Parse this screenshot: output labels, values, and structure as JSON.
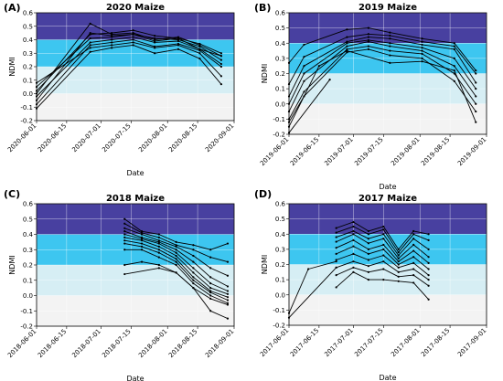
{
  "chart_data": [
    {
      "type": "line",
      "panel_label": "(A)",
      "title": "2020 Maize",
      "xlabel": "Date",
      "ylabel": "NDMI",
      "ylim": [
        -0.2,
        0.6
      ],
      "yticks": [
        "-0.2",
        "-0.1",
        "0.0",
        "0.1",
        "0.2",
        "0.3",
        "0.4",
        "0.5",
        "0.6"
      ],
      "xlim": [
        "2020-06-01",
        "2020-09-01"
      ],
      "xticks": [
        "2020-06-01",
        "2020-06-15",
        "2020-07-01",
        "2020-07-15",
        "2020-08-01",
        "2020-08-15",
        "2020-09-01"
      ],
      "grid": true,
      "bands": [
        {
          "from": 0.4,
          "to": 0.6,
          "color": "#4840a0"
        },
        {
          "from": 0.2,
          "to": 0.4,
          "color": "#3dc6f0"
        },
        {
          "from": 0.0,
          "to": 0.2,
          "color": "#d6eef4"
        },
        {
          "from": -0.2,
          "to": 0.0,
          "color": "#f3f3f3"
        }
      ],
      "series": [
        {
          "x": [
            "2020-06-01",
            "2020-06-26",
            "2020-07-06",
            "2020-07-16",
            "2020-07-26",
            "2020-08-06",
            "2020-08-16",
            "2020-08-26"
          ],
          "values": [
            0.02,
            0.44,
            0.45,
            0.47,
            0.43,
            0.41,
            0.37,
            0.3
          ]
        },
        {
          "x": [
            "2020-06-01",
            "2020-06-26",
            "2020-07-06",
            "2020-07-16",
            "2020-07-26",
            "2020-08-06",
            "2020-08-16",
            "2020-08-26"
          ],
          "values": [
            0.0,
            0.52,
            0.44,
            0.45,
            0.4,
            0.42,
            0.36,
            0.28
          ]
        },
        {
          "x": [
            "2020-06-01",
            "2020-06-26",
            "2020-07-06",
            "2020-07-16",
            "2020-07-26",
            "2020-08-06",
            "2020-08-16",
            "2020-08-26"
          ],
          "values": [
            -0.05,
            0.45,
            0.43,
            0.44,
            0.41,
            0.4,
            0.35,
            0.25
          ]
        },
        {
          "x": [
            "2020-06-01",
            "2020-06-26",
            "2020-07-06",
            "2020-07-16",
            "2020-07-26",
            "2020-08-06",
            "2020-08-16",
            "2020-08-26"
          ],
          "values": [
            0.05,
            0.41,
            0.42,
            0.44,
            0.39,
            0.41,
            0.33,
            0.28
          ]
        },
        {
          "x": [
            "2020-06-01",
            "2020-06-26",
            "2020-07-06",
            "2020-07-16",
            "2020-07-26",
            "2020-08-06",
            "2020-08-16",
            "2020-08-26"
          ],
          "values": [
            -0.02,
            0.38,
            0.4,
            0.42,
            0.38,
            0.39,
            0.33,
            0.22
          ]
        },
        {
          "x": [
            "2020-06-01",
            "2020-06-26",
            "2020-07-06",
            "2020-07-16",
            "2020-07-26",
            "2020-08-06",
            "2020-08-16",
            "2020-08-26"
          ],
          "values": [
            -0.08,
            0.36,
            0.38,
            0.4,
            0.35,
            0.37,
            0.32,
            0.2
          ]
        },
        {
          "x": [
            "2020-06-01",
            "2020-06-26",
            "2020-07-06",
            "2020-07-16",
            "2020-07-26",
            "2020-08-06",
            "2020-08-16",
            "2020-08-26"
          ],
          "values": [
            0.08,
            0.34,
            0.36,
            0.38,
            0.34,
            0.36,
            0.3,
            0.13
          ]
        },
        {
          "x": [
            "2020-06-01",
            "2020-06-26",
            "2020-07-06",
            "2020-07-16",
            "2020-07-26",
            "2020-08-06",
            "2020-08-16",
            "2020-08-26"
          ],
          "values": [
            -0.11,
            0.31,
            0.34,
            0.36,
            0.3,
            0.33,
            0.26,
            0.07
          ]
        }
      ]
    },
    {
      "type": "line",
      "panel_label": "(B)",
      "title": "2019 Maize",
      "xlabel": "Date",
      "ylabel": "NDMI",
      "ylim": [
        -0.2,
        0.6
      ],
      "yticks": [
        "-0.2",
        "-0.1",
        "0.0",
        "0.1",
        "0.2",
        "0.3",
        "0.4",
        "0.5",
        "0.6"
      ],
      "xlim": [
        "2019-06-01",
        "2019-09-01"
      ],
      "xticks": [
        "2019-06-01",
        "2019-06-15",
        "2019-07-01",
        "2019-07-15",
        "2019-08-01",
        "2019-08-15",
        "2019-09-01"
      ],
      "grid": true,
      "bands": [
        {
          "from": 0.4,
          "to": 0.6,
          "color": "#4840a0"
        },
        {
          "from": 0.2,
          "to": 0.4,
          "color": "#3dc6f0"
        },
        {
          "from": 0.0,
          "to": 0.2,
          "color": "#d6eef4"
        },
        {
          "from": -0.2,
          "to": 0.0,
          "color": "#f3f3f3"
        }
      ],
      "series": [
        {
          "x": [
            "2019-06-01",
            "2019-06-08",
            "2019-06-28",
            "2019-07-08",
            "2019-07-18",
            "2019-08-02",
            "2019-08-17",
            "2019-08-27"
          ],
          "values": [
            0.27,
            0.39,
            0.49,
            0.5,
            0.47,
            0.43,
            0.4,
            0.22
          ]
        },
        {
          "x": [
            "2019-06-01",
            "2019-06-08",
            "2019-06-28",
            "2019-07-08",
            "2019-07-18",
            "2019-08-02",
            "2019-08-17",
            "2019-08-27"
          ],
          "values": [
            0.13,
            0.31,
            0.44,
            0.46,
            0.45,
            0.41,
            0.38,
            0.2
          ]
        },
        {
          "x": [
            "2019-06-01",
            "2019-06-08",
            "2019-06-28",
            "2019-07-08",
            "2019-07-18",
            "2019-08-02",
            "2019-08-17",
            "2019-08-27"
          ],
          "values": [
            0.05,
            0.25,
            0.41,
            0.44,
            0.43,
            0.39,
            0.36,
            0.14
          ]
        },
        {
          "x": [
            "2019-06-01",
            "2019-06-08",
            "2019-06-28",
            "2019-07-08",
            "2019-07-18",
            "2019-08-02",
            "2019-08-17",
            "2019-08-27"
          ],
          "values": [
            0.0,
            0.2,
            0.4,
            0.42,
            0.4,
            0.37,
            0.3,
            0.1
          ]
        },
        {
          "x": [
            "2019-06-01",
            "2019-06-08",
            "2019-06-28",
            "2019-07-08",
            "2019-07-18",
            "2019-08-02",
            "2019-08-17",
            "2019-08-27"
          ],
          "values": [
            -0.05,
            0.15,
            0.38,
            0.41,
            0.38,
            0.35,
            0.25,
            0.05
          ]
        },
        {
          "x": [
            "2019-06-01",
            "2019-06-08",
            "2019-06-28",
            "2019-07-08",
            "2019-07-18",
            "2019-08-02",
            "2019-08-17",
            "2019-08-27"
          ],
          "values": [
            -0.1,
            0.08,
            0.36,
            0.38,
            0.35,
            0.33,
            0.2,
            0.0
          ]
        },
        {
          "x": [
            "2019-06-01",
            "2019-06-08",
            "2019-06-28",
            "2019-07-08",
            "2019-07-18",
            "2019-08-02",
            "2019-08-17",
            "2019-08-27"
          ],
          "values": [
            -0.12,
            0.05,
            0.34,
            0.36,
            0.32,
            0.3,
            0.15,
            -0.05
          ]
        },
        {
          "x": [
            "2019-06-01",
            "2019-06-15",
            "2019-06-28",
            "2019-07-18",
            "2019-08-02",
            "2019-08-17",
            "2019-08-27"
          ],
          "values": [
            -0.15,
            0.25,
            0.35,
            0.27,
            0.28,
            0.22,
            -0.12
          ]
        },
        {
          "x": [
            "2019-06-01",
            "2019-06-20"
          ],
          "values": [
            -0.19,
            0.16
          ]
        }
      ]
    },
    {
      "type": "line",
      "panel_label": "(C)",
      "title": "2018 Maize",
      "xlabel": "Date",
      "ylabel": "NDMI",
      "ylim": [
        -0.2,
        0.6
      ],
      "yticks": [
        "-0.2",
        "-0.1",
        "0.0",
        "0.1",
        "0.2",
        "0.3",
        "0.4",
        "0.5",
        "0.6"
      ],
      "xlim": [
        "2018-06-01",
        "2018-09-01"
      ],
      "xticks": [
        "2018-06-01",
        "2018-06-15",
        "2018-07-01",
        "2018-07-15",
        "2018-08-01",
        "2018-08-15",
        "2018-09-01"
      ],
      "grid": true,
      "bands": [
        {
          "from": 0.4,
          "to": 0.6,
          "color": "#4840a0"
        },
        {
          "from": 0.2,
          "to": 0.4,
          "color": "#3dc6f0"
        },
        {
          "from": 0.0,
          "to": 0.2,
          "color": "#d6eef4"
        },
        {
          "from": -0.2,
          "to": 0.0,
          "color": "#f3f3f3"
        }
      ],
      "series": [
        {
          "x": [
            "2018-07-12",
            "2018-07-20",
            "2018-07-28",
            "2018-08-05",
            "2018-08-13",
            "2018-08-21",
            "2018-08-29"
          ],
          "values": [
            0.5,
            0.42,
            0.4,
            0.35,
            0.33,
            0.3,
            0.34
          ]
        },
        {
          "x": [
            "2018-07-12",
            "2018-07-20",
            "2018-07-28",
            "2018-08-05",
            "2018-08-13",
            "2018-08-21",
            "2018-08-29"
          ],
          "values": [
            0.47,
            0.41,
            0.38,
            0.33,
            0.3,
            0.25,
            0.22
          ]
        },
        {
          "x": [
            "2018-07-12",
            "2018-07-20",
            "2018-07-28",
            "2018-08-05",
            "2018-08-13",
            "2018-08-21",
            "2018-08-29"
          ],
          "values": [
            0.44,
            0.4,
            0.36,
            0.32,
            0.26,
            0.18,
            0.13
          ]
        },
        {
          "x": [
            "2018-07-12",
            "2018-07-20",
            "2018-07-28",
            "2018-08-05",
            "2018-08-13",
            "2018-08-21",
            "2018-08-29"
          ],
          "values": [
            0.42,
            0.38,
            0.35,
            0.3,
            0.22,
            0.12,
            0.06
          ]
        },
        {
          "x": [
            "2018-07-12",
            "2018-07-20",
            "2018-07-28",
            "2018-08-05",
            "2018-08-13",
            "2018-08-21",
            "2018-08-29"
          ],
          "values": [
            0.4,
            0.37,
            0.34,
            0.28,
            0.18,
            0.08,
            0.03
          ]
        },
        {
          "x": [
            "2018-07-12",
            "2018-07-20",
            "2018-07-28",
            "2018-08-05",
            "2018-08-13",
            "2018-08-21",
            "2018-08-29"
          ],
          "values": [
            0.38,
            0.36,
            0.32,
            0.26,
            0.15,
            0.05,
            0.01
          ]
        },
        {
          "x": [
            "2018-07-12",
            "2018-07-20",
            "2018-07-28",
            "2018-08-05",
            "2018-08-13",
            "2018-08-21",
            "2018-08-29"
          ],
          "values": [
            0.36,
            0.34,
            0.3,
            0.24,
            0.12,
            0.03,
            -0.01
          ]
        },
        {
          "x": [
            "2018-07-12",
            "2018-07-20",
            "2018-07-28",
            "2018-08-05",
            "2018-08-13",
            "2018-08-21",
            "2018-08-29"
          ],
          "values": [
            0.34,
            0.32,
            0.28,
            0.22,
            0.1,
            0.02,
            -0.03
          ]
        },
        {
          "x": [
            "2018-07-12",
            "2018-07-20",
            "2018-07-28",
            "2018-08-05",
            "2018-08-13",
            "2018-08-21",
            "2018-08-29"
          ],
          "values": [
            0.3,
            0.3,
            0.25,
            0.2,
            0.08,
            0.0,
            -0.05
          ]
        },
        {
          "x": [
            "2018-07-12",
            "2018-07-20",
            "2018-07-28",
            "2018-08-05",
            "2018-08-13",
            "2018-08-21",
            "2018-08-29"
          ],
          "values": [
            0.2,
            0.22,
            0.2,
            0.15,
            0.05,
            -0.02,
            -0.06
          ]
        },
        {
          "x": [
            "2018-07-12",
            "2018-07-28",
            "2018-08-05",
            "2018-08-13",
            "2018-08-21",
            "2018-08-29"
          ],
          "values": [
            0.14,
            0.18,
            0.15,
            0.05,
            -0.1,
            -0.15
          ]
        }
      ]
    },
    {
      "type": "line",
      "panel_label": "(D)",
      "title": "2017 Maize",
      "xlabel": "Date",
      "ylabel": "NDMI",
      "ylim": [
        -0.2,
        0.6
      ],
      "yticks": [
        "-0.2",
        "-0.1",
        "0.0",
        "0.1",
        "0.2",
        "0.3",
        "0.4",
        "0.5",
        "0.6"
      ],
      "xlim": [
        "2017-06-01",
        "2017-09-01"
      ],
      "xticks": [
        "2017-06-01",
        "2017-06-15",
        "2017-07-01",
        "2017-07-15",
        "2017-08-01",
        "2017-08-15",
        "2017-09-01"
      ],
      "grid": true,
      "bands": [
        {
          "from": 0.4,
          "to": 0.6,
          "color": "#4840a0"
        },
        {
          "from": 0.2,
          "to": 0.4,
          "color": "#3dc6f0"
        },
        {
          "from": 0.0,
          "to": 0.2,
          "color": "#d6eef4"
        },
        {
          "from": -0.2,
          "to": 0.0,
          "color": "#f3f3f3"
        }
      ],
      "series": [
        {
          "x": [
            "2017-06-23",
            "2017-07-01",
            "2017-07-08",
            "2017-07-15",
            "2017-07-22",
            "2017-07-29",
            "2017-08-05"
          ],
          "values": [
            0.44,
            0.48,
            0.42,
            0.45,
            0.3,
            0.42,
            0.4
          ]
        },
        {
          "x": [
            "2017-06-23",
            "2017-07-01",
            "2017-07-08",
            "2017-07-15",
            "2017-07-22",
            "2017-07-29",
            "2017-08-05"
          ],
          "values": [
            0.41,
            0.45,
            0.4,
            0.43,
            0.28,
            0.4,
            0.36
          ]
        },
        {
          "x": [
            "2017-06-23",
            "2017-07-01",
            "2017-07-08",
            "2017-07-15",
            "2017-07-22",
            "2017-07-29",
            "2017-08-05"
          ],
          "values": [
            0.38,
            0.42,
            0.37,
            0.4,
            0.26,
            0.37,
            0.3
          ]
        },
        {
          "x": [
            "2017-06-23",
            "2017-07-01",
            "2017-07-08",
            "2017-07-15",
            "2017-07-22",
            "2017-07-29",
            "2017-08-05"
          ],
          "values": [
            0.35,
            0.4,
            0.34,
            0.37,
            0.24,
            0.33,
            0.25
          ]
        },
        {
          "x": [
            "2017-06-23",
            "2017-07-01",
            "2017-07-08",
            "2017-07-15",
            "2017-07-22",
            "2017-07-29",
            "2017-08-05"
          ],
          "values": [
            0.31,
            0.36,
            0.3,
            0.33,
            0.22,
            0.29,
            0.21
          ]
        },
        {
          "x": [
            "2017-06-23",
            "2017-07-01",
            "2017-07-08",
            "2017-07-15",
            "2017-07-22",
            "2017-07-29",
            "2017-08-05"
          ],
          "values": [
            0.27,
            0.32,
            0.27,
            0.3,
            0.2,
            0.25,
            0.17
          ]
        },
        {
          "x": [
            "2017-06-23",
            "2017-07-01",
            "2017-07-08",
            "2017-07-15",
            "2017-07-22",
            "2017-07-29",
            "2017-08-05"
          ],
          "values": [
            0.23,
            0.27,
            0.23,
            0.26,
            0.18,
            0.21,
            0.13
          ]
        },
        {
          "x": [
            "2017-06-23",
            "2017-07-01",
            "2017-07-08",
            "2017-07-15",
            "2017-07-22",
            "2017-07-29",
            "2017-08-05"
          ],
          "values": [
            0.18,
            0.22,
            0.19,
            0.22,
            0.15,
            0.17,
            0.1
          ]
        },
        {
          "x": [
            "2017-06-23",
            "2017-07-01",
            "2017-07-08",
            "2017-07-15",
            "2017-07-22",
            "2017-07-29",
            "2017-08-05"
          ],
          "values": [
            0.13,
            0.18,
            0.15,
            0.17,
            0.12,
            0.13,
            0.06
          ]
        },
        {
          "x": [
            "2017-06-23",
            "2017-07-01",
            "2017-07-08",
            "2017-07-15",
            "2017-07-22",
            "2017-07-29",
            "2017-08-05"
          ],
          "values": [
            0.05,
            0.15,
            0.1,
            0.1,
            0.09,
            0.08,
            -0.03
          ]
        },
        {
          "x": [
            "2017-06-01",
            "2017-06-10",
            "2017-06-23"
          ],
          "values": [
            -0.12,
            0.17,
            0.22
          ]
        },
        {
          "x": [
            "2017-06-01",
            "2017-06-23"
          ],
          "values": [
            -0.15,
            0.18
          ]
        }
      ]
    }
  ]
}
